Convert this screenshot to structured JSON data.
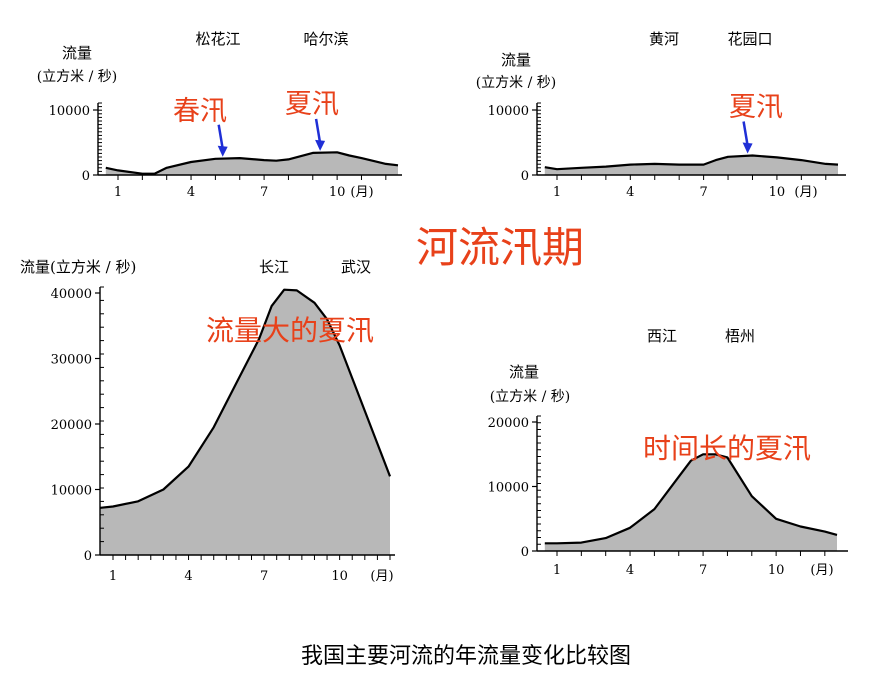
{
  "figure_title": "河流汛期",
  "caption": "我国主要河流的年流量变化比较图",
  "colors": {
    "area_fill": "#b8b8b8",
    "line": "#000000",
    "annotation_red": "#e8411a",
    "arrow_blue": "#1f2fd6"
  },
  "chart_data": [
    {
      "id": "songhua",
      "type": "area",
      "river": "松花江",
      "station": "哈尔滨",
      "ylabel_line1": "流量",
      "ylabel_line2": "(立方米 / 秒)",
      "yticks": [
        "10000",
        "0"
      ],
      "xticks": [
        "1",
        "4",
        "7",
        "10"
      ],
      "month_unit": "(月)",
      "ylim": [
        0,
        10000
      ],
      "x": [
        0.5,
        1.0,
        2.0,
        2.5,
        3.0,
        4.0,
        5.0,
        6.0,
        7.0,
        7.5,
        8.0,
        9.0,
        10.0,
        10.5,
        11.0,
        12.0,
        12.5
      ],
      "values": [
        1100,
        700,
        200,
        200,
        1100,
        2000,
        2500,
        2600,
        2300,
        2200,
        2400,
        3400,
        3500,
        3000,
        2600,
        1700,
        1500
      ],
      "annotations": [
        {
          "text": "春汛",
          "arrow_x": 5.3,
          "arrow_y": 2500
        },
        {
          "text": "夏汛",
          "arrow_x": 9.3,
          "arrow_y": 3400
        }
      ]
    },
    {
      "id": "huanghe",
      "type": "area",
      "river": "黄河",
      "station": "花园口",
      "ylabel_line1": "流量",
      "ylabel_line2": "(立方米 / 秒)",
      "yticks": [
        "10000",
        "0"
      ],
      "xticks": [
        "1",
        "4",
        "7",
        "10"
      ],
      "month_unit": "(月)",
      "ylim": [
        0,
        10000
      ],
      "x": [
        0.5,
        1.0,
        2.0,
        3.0,
        4.0,
        5.0,
        6.0,
        7.0,
        7.5,
        8.0,
        9.0,
        10.0,
        11.0,
        12.0,
        12.5
      ],
      "values": [
        1200,
        900,
        1100,
        1300,
        1600,
        1700,
        1600,
        1600,
        2300,
        2800,
        3000,
        2700,
        2300,
        1700,
        1600
      ],
      "annotations": [
        {
          "text": "夏汛",
          "arrow_x": 8.8,
          "arrow_y": 3000
        }
      ]
    },
    {
      "id": "changjiang",
      "type": "area",
      "river": "长江",
      "station": "武汉",
      "ylabel_line1": "流量(立方米 / 秒)",
      "yticks": [
        "40000",
        "30000",
        "20000",
        "10000",
        "0"
      ],
      "xticks": [
        "1",
        "4",
        "7",
        "10"
      ],
      "month_unit": "(月)",
      "ylim": [
        0,
        40000
      ],
      "x": [
        0.5,
        1.0,
        2.0,
        3.0,
        4.0,
        5.0,
        6.0,
        6.8,
        7.3,
        7.8,
        8.3,
        9.0,
        9.5,
        10.0,
        10.5,
        11.0,
        11.5,
        12.0
      ],
      "values": [
        7200,
        7400,
        8200,
        10000,
        13500,
        19500,
        27000,
        33000,
        38000,
        40500,
        40400,
        38500,
        36000,
        32000,
        27000,
        22000,
        17000,
        12000
      ],
      "annotations": [
        {
          "text": "流量大的夏汛"
        }
      ]
    },
    {
      "id": "xijiang",
      "type": "area",
      "river": "西江",
      "station": "梧州",
      "ylabel_line1": "流量",
      "ylabel_line2": "(立方米 / 秒)",
      "yticks": [
        "20000",
        "10000",
        "0"
      ],
      "xticks": [
        "1",
        "4",
        "7",
        "10"
      ],
      "month_unit": "(月)",
      "ylim": [
        0,
        20000
      ],
      "x": [
        0.5,
        1.0,
        2.0,
        3.0,
        4.0,
        5.0,
        6.0,
        6.5,
        7.0,
        7.5,
        8.0,
        9.0,
        10.0,
        11.0,
        12.0,
        12.5
      ],
      "values": [
        1200,
        1200,
        1300,
        2000,
        3600,
        6500,
        11500,
        14000,
        15000,
        15000,
        14500,
        8500,
        5000,
        3800,
        3000,
        2500
      ],
      "annotations": [
        {
          "text": "时间长的夏汛"
        }
      ]
    }
  ]
}
